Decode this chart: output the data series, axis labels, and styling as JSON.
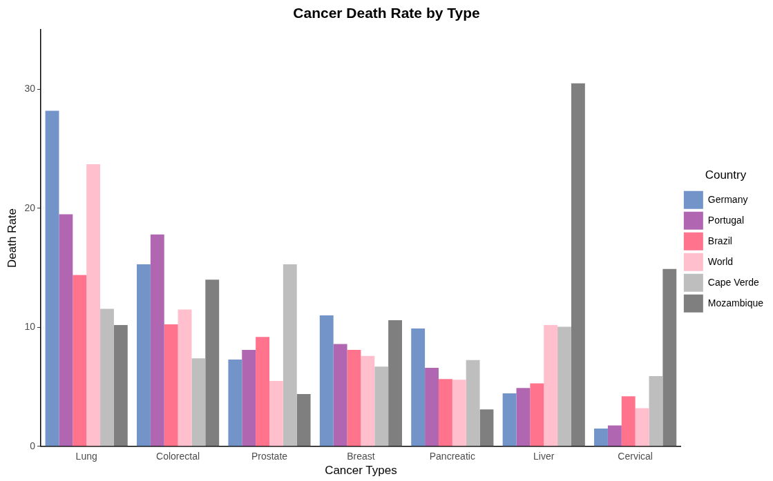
{
  "chart_data": {
    "type": "bar",
    "title": "Cancer Death Rate by Type",
    "xlabel": "Cancer Types",
    "ylabel": "Death Rate",
    "legend_title": "Country",
    "categories": [
      "Lung",
      "Colorectal",
      "Prostate",
      "Breast",
      "Pancreatic",
      "Liver",
      "Cervical"
    ],
    "series": [
      {
        "name": "Germany",
        "color": "#7294c9",
        "values": [
          28.2,
          15.3,
          7.3,
          11.0,
          9.9,
          4.45,
          1.5
        ]
      },
      {
        "name": "Portugal",
        "color": "#b066b0",
        "values": [
          19.5,
          17.8,
          8.1,
          8.6,
          6.6,
          4.9,
          1.75
        ]
      },
      {
        "name": "Brazil",
        "color": "#ff738c",
        "values": [
          14.4,
          10.25,
          9.2,
          8.1,
          5.65,
          5.3,
          4.2
        ]
      },
      {
        "name": "World",
        "color": "#ffbfcc",
        "values": [
          23.7,
          11.5,
          5.5,
          7.6,
          5.6,
          10.2,
          3.2
        ]
      },
      {
        "name": "Cape Verde",
        "color": "#bebebe",
        "values": [
          11.55,
          7.4,
          15.3,
          6.7,
          7.25,
          10.05,
          5.9
        ]
      },
      {
        "name": "Mozambique",
        "color": "#7f7f7f",
        "values": [
          10.2,
          14.0,
          4.4,
          10.6,
          3.1,
          30.5,
          14.9
        ]
      }
    ],
    "ylim": [
      0,
      35
    ],
    "yticks": [
      0,
      10,
      20,
      30
    ],
    "grid": false,
    "legend": "right"
  }
}
